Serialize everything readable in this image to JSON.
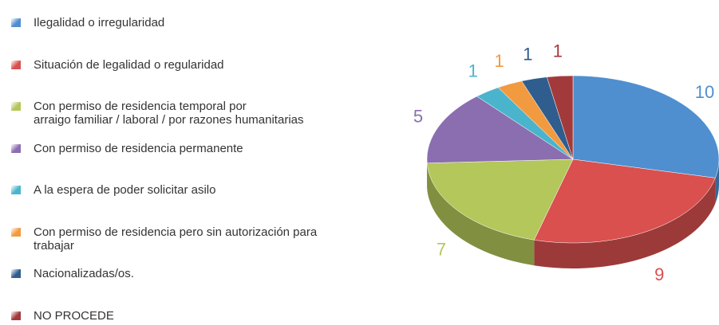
{
  "chart_data": {
    "type": "pie",
    "categories": [
      "Ilegalidad o irregularidad",
      "Situación de legalidad o regularidad",
      "Con permiso de residencia temporal por\narraigo familiar / laboral / por razones humanitarias",
      "Con permiso de residencia permanente",
      "A la espera de poder solicitar asilo",
      "Con permiso de residencia pero sin autorización para\ntrabajar",
      "Nacionalizadas/os.",
      "NO PROCEDE"
    ],
    "values": [
      10,
      9,
      7,
      5,
      1,
      1,
      1,
      1
    ],
    "colors": [
      "#4f8fcf",
      "#d9504f",
      "#b3c75a",
      "#8a6eaf",
      "#4ab4cc",
      "#f29a3f",
      "#2f5d8e",
      "#a23a3b"
    ],
    "legend": "left"
  }
}
